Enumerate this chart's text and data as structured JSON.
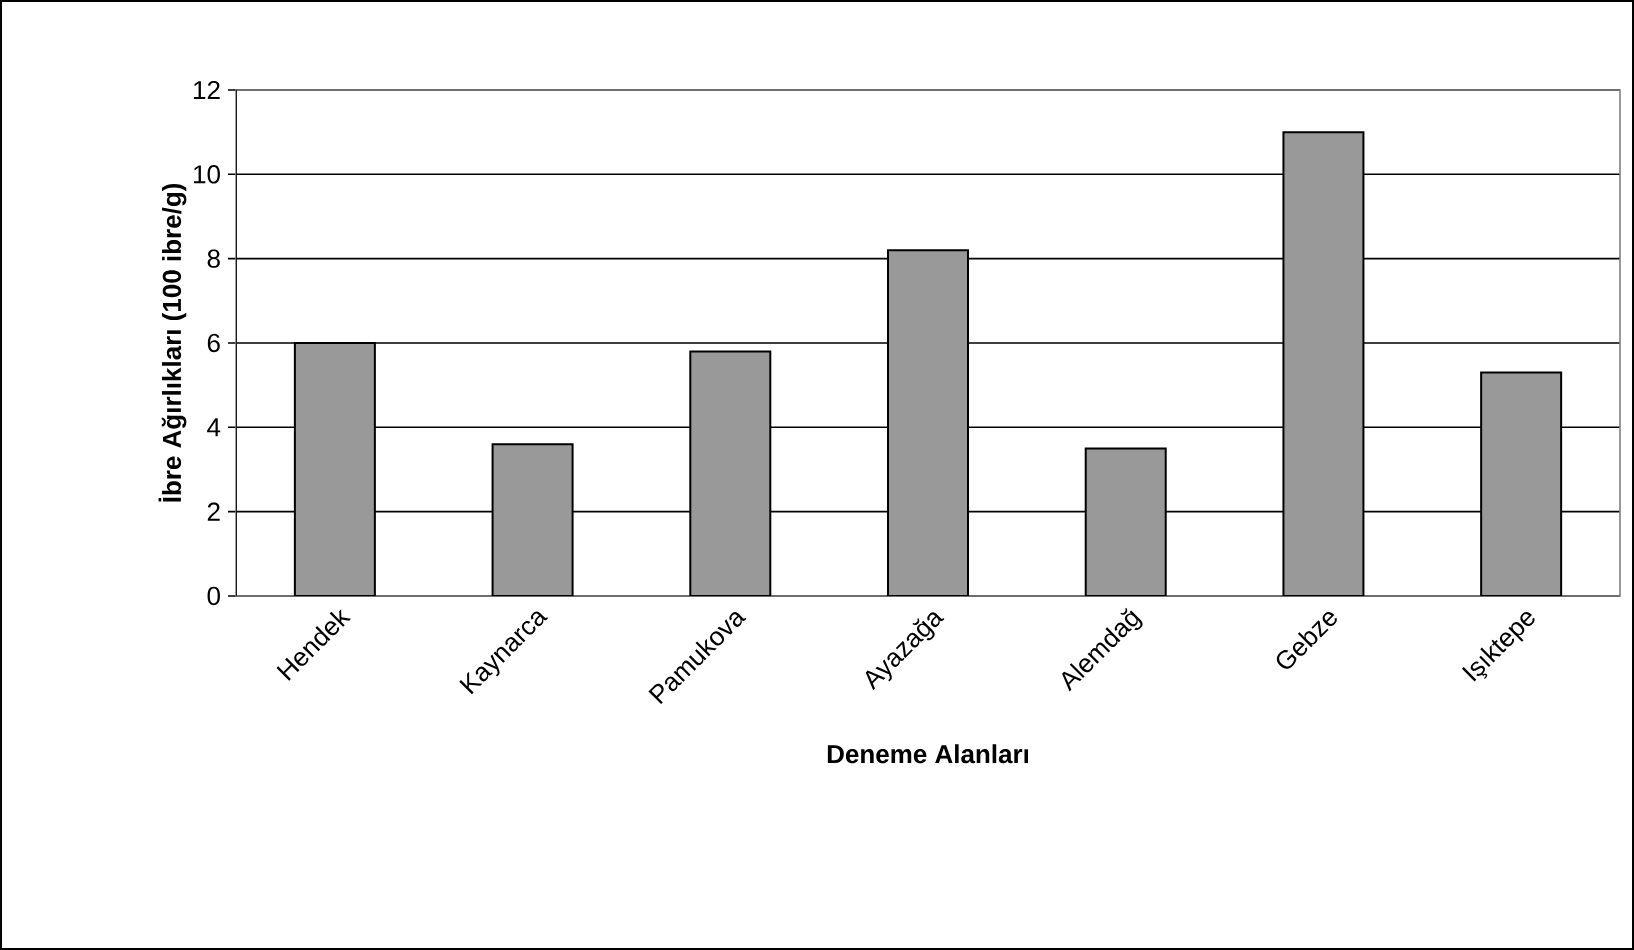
{
  "chart_data": {
    "type": "bar",
    "xlabel": "Deneme Alanları",
    "ylabel": "İbre Ağırlıkları (100 ibre/g)",
    "categories": [
      "Hendek",
      "Kaynarca",
      "Pamukova",
      "Ayazağa",
      "Alemdağ",
      "Gebze",
      "Işıktepe"
    ],
    "values": [
      6.0,
      3.6,
      5.8,
      8.2,
      3.5,
      11.0,
      5.3
    ],
    "color": "#999999",
    "ylim": [
      0,
      12
    ],
    "yticks": [
      0,
      2,
      4,
      6,
      8,
      10,
      12
    ],
    "grid": "y"
  }
}
